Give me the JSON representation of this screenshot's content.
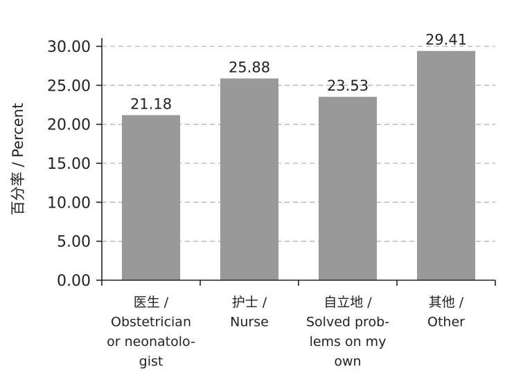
{
  "chart_data": {
    "type": "bar",
    "ylabel": "百分率 / Percent",
    "categories": [
      "医生 / Obstetrician or neonatolo- gist",
      "护士 / Nurse",
      "自立地 / Solved prob- lems on my own",
      "其他 / Other"
    ],
    "category_lines": [
      [
        "医生 /",
        "Obstetrician",
        "or neonatolo-",
        "gist"
      ],
      [
        "护士 /",
        "Nurse"
      ],
      [
        "自立地 /",
        "Solved prob-",
        "lems on my",
        "own"
      ],
      [
        "其他 /",
        "Other"
      ]
    ],
    "values": [
      21.18,
      25.88,
      23.53,
      29.41
    ],
    "data_labels": [
      "21.18",
      "25.88",
      "23.53",
      "29.41"
    ],
    "ylim": [
      0,
      30
    ],
    "yticks": [
      0,
      5,
      10,
      15,
      20,
      25,
      30
    ],
    "ytick_labels": [
      "0.00",
      "5.00",
      "10.00",
      "15.00",
      "20.00",
      "25.00",
      "30.00"
    ],
    "grid": "horizontal-dashed",
    "bar_color": "#999999",
    "grid_color": "#b3b3b3",
    "axis_color": "#222222"
  }
}
